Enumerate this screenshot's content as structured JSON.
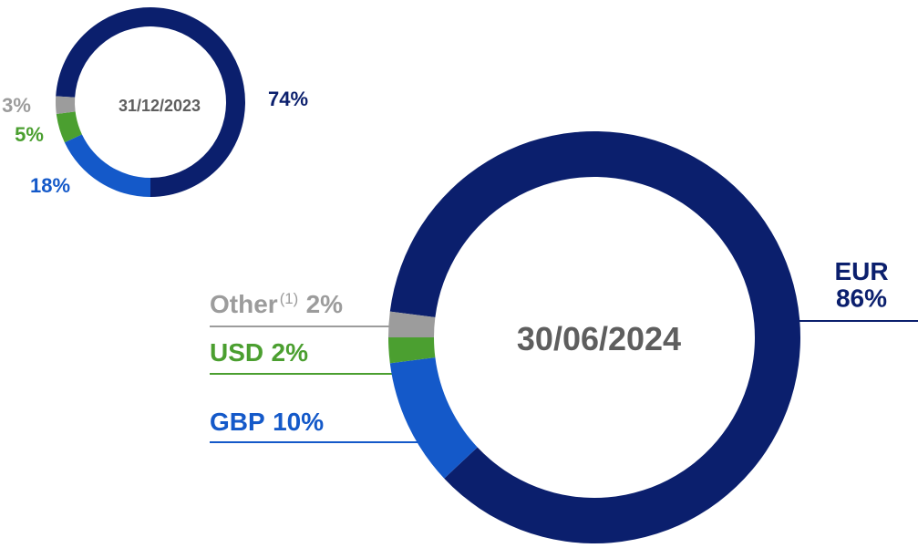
{
  "chart_data": [
    {
      "type": "pie",
      "title": "31/12/2023",
      "categories": [
        null,
        null,
        null,
        null
      ],
      "values": [
        74,
        18,
        5,
        3
      ],
      "value_labels": [
        "74%",
        "18%",
        "5%",
        "3%"
      ],
      "colors": [
        "#0b1f6d",
        "#1459c9",
        "#4b9f30",
        "#9c9c9c"
      ]
    },
    {
      "type": "pie",
      "title": "30/06/2024",
      "categories": [
        "EUR",
        "GBP",
        "USD",
        "Other"
      ],
      "category_footnotes": [
        null,
        null,
        null,
        "(1)"
      ],
      "values": [
        86,
        10,
        2,
        2
      ],
      "value_labels": [
        "86%",
        "10%",
        "2%",
        "2%"
      ],
      "colors": [
        "#0b1f6d",
        "#1459c9",
        "#4b9f30",
        "#9c9c9c"
      ]
    }
  ]
}
